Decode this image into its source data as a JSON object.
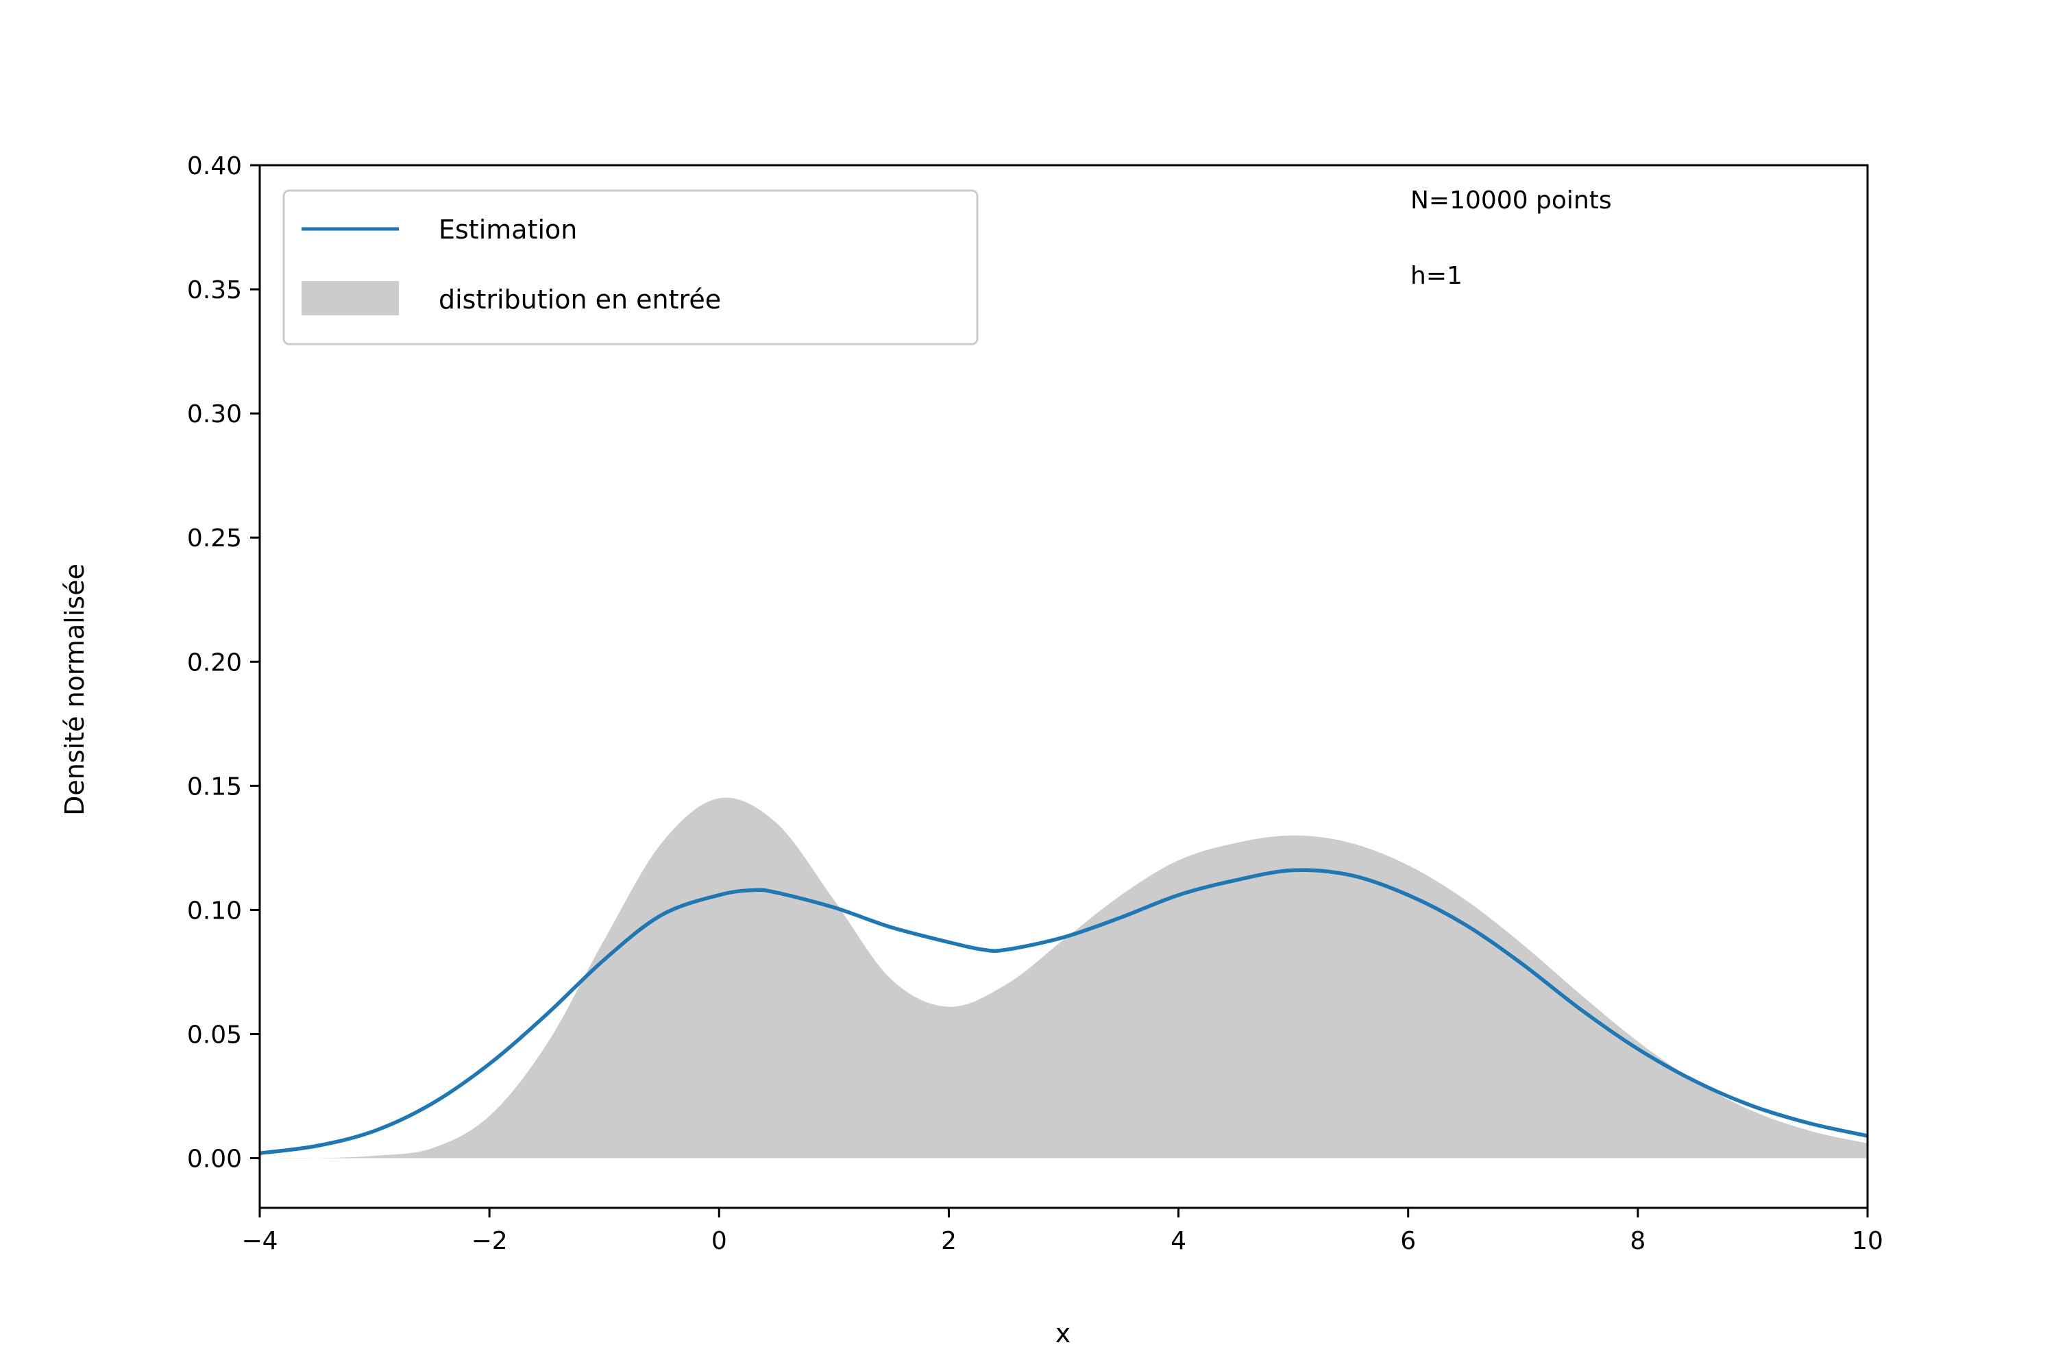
{
  "chart_data": {
    "type": "line",
    "title": "",
    "xlabel": "x",
    "ylabel": "Densité normalisée",
    "xlim": [
      -4,
      10
    ],
    "ylim": [
      -0.02,
      0.4
    ],
    "xticks": [
      -4,
      -2,
      0,
      2,
      4,
      6,
      8,
      10
    ],
    "xtick_labels": [
      "−4",
      "−2",
      "0",
      "2",
      "4",
      "6",
      "8",
      "10"
    ],
    "yticks": [
      0.0,
      0.05,
      0.1,
      0.15,
      0.2,
      0.25,
      0.3,
      0.35,
      0.4
    ],
    "ytick_labels": [
      "0.00",
      "0.05",
      "0.10",
      "0.15",
      "0.20",
      "0.25",
      "0.30",
      "0.35",
      "0.40"
    ],
    "grid": false,
    "legend_position": "top-left",
    "series": [
      {
        "name": "Estimation",
        "kind": "line",
        "color": "#1f77b4",
        "x": [
          -4,
          -3.5,
          -3,
          -2.5,
          -2,
          -1.5,
          -1,
          -0.5,
          0,
          0.3,
          0.5,
          1,
          1.5,
          2,
          2.3,
          2.5,
          3,
          3.5,
          4,
          4.5,
          5,
          5.5,
          6,
          6.5,
          7,
          7.5,
          8,
          8.5,
          9,
          9.5,
          10
        ],
        "y": [
          0.002,
          0.005,
          0.011,
          0.022,
          0.038,
          0.058,
          0.08,
          0.098,
          0.106,
          0.108,
          0.107,
          0.101,
          0.093,
          0.087,
          0.084,
          0.084,
          0.089,
          0.097,
          0.106,
          0.112,
          0.116,
          0.114,
          0.106,
          0.094,
          0.078,
          0.06,
          0.044,
          0.031,
          0.021,
          0.014,
          0.009
        ]
      },
      {
        "name": "distribution en entrée",
        "kind": "area",
        "color": "#cccccc",
        "x": [
          -4,
          -3.5,
          -3,
          -2.5,
          -2,
          -1.5,
          -1,
          -0.5,
          0,
          0.5,
          1,
          1.5,
          2,
          2.5,
          3,
          3.5,
          4,
          4.5,
          5,
          5.5,
          6,
          6.5,
          7,
          7.5,
          8,
          8.5,
          9,
          9.5,
          10
        ],
        "y": [
          0.0,
          0.0,
          0.001,
          0.004,
          0.017,
          0.046,
          0.088,
          0.127,
          0.145,
          0.135,
          0.104,
          0.072,
          0.061,
          0.07,
          0.088,
          0.106,
          0.12,
          0.127,
          0.13,
          0.127,
          0.118,
          0.104,
          0.086,
          0.066,
          0.047,
          0.031,
          0.019,
          0.011,
          0.006
        ],
        "y_base": [
          0.0,
          0.0,
          0.0,
          0.0,
          0.0,
          0.0,
          0.0,
          0.0,
          0.0,
          0.0,
          0.0,
          0.0,
          0.0,
          0.0,
          0.0,
          0.0,
          0.0,
          0.0,
          0.0,
          0.0,
          0.0,
          0.0,
          0.0,
          0.0,
          0.0,
          0.0,
          0.0,
          0.0,
          0.0
        ]
      }
    ],
    "annotations": [
      "N=10000 points",
      "h=1"
    ]
  }
}
